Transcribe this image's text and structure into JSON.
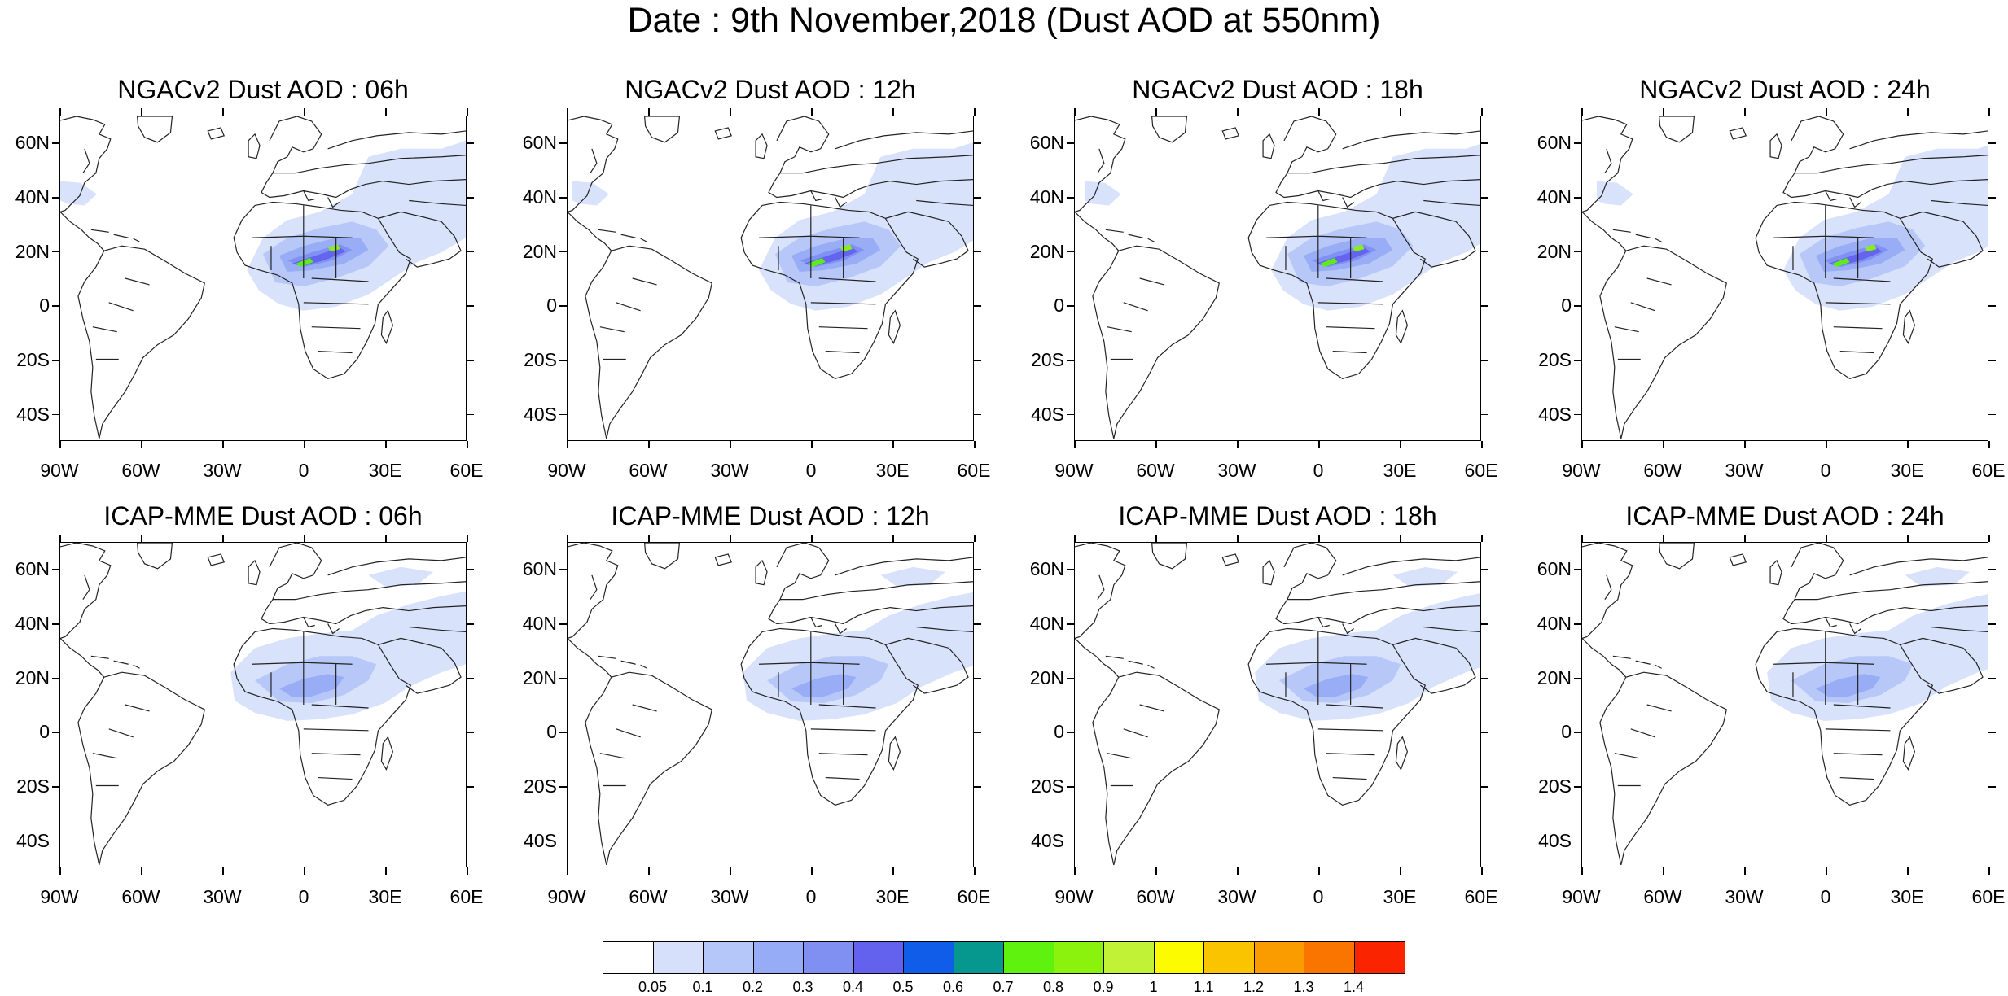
{
  "title": "Date : 9th November,2018 (Dust AOD at 550nm)",
  "panels": [
    {
      "title": "NGACv2 Dust AOD : 06h",
      "model": "NGACv2",
      "hour": "06h"
    },
    {
      "title": "NGACv2 Dust AOD : 12h",
      "model": "NGACv2",
      "hour": "12h"
    },
    {
      "title": "NGACv2 Dust AOD : 18h",
      "model": "NGACv2",
      "hour": "18h"
    },
    {
      "title": "NGACv2 Dust AOD : 24h",
      "model": "NGACv2",
      "hour": "24h"
    },
    {
      "title": "ICAP-MME Dust AOD : 06h",
      "model": "ICAP-MME",
      "hour": "06h"
    },
    {
      "title": "ICAP-MME Dust AOD : 12h",
      "model": "ICAP-MME",
      "hour": "12h"
    },
    {
      "title": "ICAP-MME Dust AOD : 18h",
      "model": "ICAP-MME",
      "hour": "18h"
    },
    {
      "title": "ICAP-MME Dust AOD : 24h",
      "model": "ICAP-MME",
      "hour": "24h"
    }
  ],
  "lat_ticks": [
    "60N",
    "40N",
    "20N",
    "0",
    "20S",
    "40S"
  ],
  "lon_ticks": [
    "90W",
    "60W",
    "30W",
    "0",
    "30E",
    "60E"
  ],
  "colorbar": {
    "labels": [
      "0.05",
      "0.1",
      "0.2",
      "0.3",
      "0.4",
      "0.5",
      "0.6",
      "0.7",
      "0.8",
      "0.9",
      "1",
      "1.1",
      "1.2",
      "1.3",
      "1.4"
    ],
    "colors": [
      "#ffffff",
      "#d6e0fb",
      "#b5c6f8",
      "#97acf6",
      "#7f8ff2",
      "#6262ee",
      "#0f5de8",
      "#06978f",
      "#5ef20e",
      "#8bf20e",
      "#c2f236",
      "#fdfb00",
      "#fbc400",
      "#fa9c00",
      "#fa7400",
      "#fa2500"
    ]
  },
  "chart_data": {
    "type": "heatmap",
    "variable": "Dust AOD at 550nm",
    "date": "9th November,2018",
    "domain": {
      "lon_range": [
        -90,
        60
      ],
      "lat_range": [
        -50,
        70
      ]
    },
    "models": [
      "NGACv2",
      "ICAP-MME"
    ],
    "forecast_hours": [
      "06h",
      "12h",
      "18h",
      "24h"
    ],
    "levels": [
      0.05,
      0.1,
      0.2,
      0.3,
      0.4,
      0.5,
      0.6,
      0.7,
      0.8,
      0.9,
      1,
      1.1,
      1.2,
      1.3,
      1.4
    ]
  }
}
